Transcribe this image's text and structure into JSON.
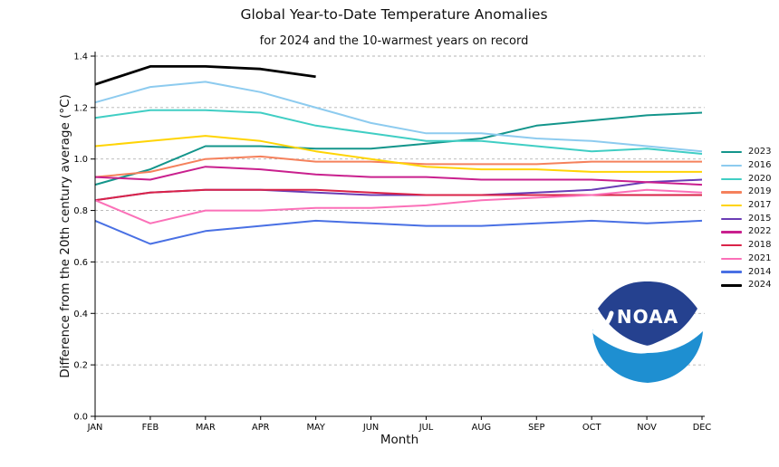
{
  "header": {
    "title": "Global Year-to-Date Temperature Anomalies",
    "subtitle": "for 2024 and the 10-warmest years on record"
  },
  "chart_data": {
    "type": "line",
    "title": "Global Year-to-Date Temperature Anomalies",
    "subtitle": "for 2024 and the 10-warmest years on record",
    "xlabel": "Month",
    "ylabel": "Difference from the 20th century average (°C)",
    "categories": [
      "JAN",
      "FEB",
      "MAR",
      "APR",
      "MAY",
      "JUN",
      "JUL",
      "AUG",
      "SEP",
      "OCT",
      "NOV",
      "DEC"
    ],
    "ylim": [
      0.0,
      1.4
    ],
    "yticks": [
      0.0,
      0.2,
      0.4,
      0.6,
      0.8,
      1.0,
      1.2,
      1.4
    ],
    "grid": "dashed horizontal gridlines at each 0.2 °C",
    "legend_position": "right",
    "series": [
      {
        "name": "2023",
        "color": "#13958B",
        "width": 2,
        "values": [
          0.9,
          0.96,
          1.05,
          1.05,
          1.04,
          1.04,
          1.06,
          1.08,
          1.13,
          1.15,
          1.17,
          1.18
        ]
      },
      {
        "name": "2016",
        "color": "#8DCBEF",
        "width": 2,
        "values": [
          1.22,
          1.28,
          1.3,
          1.26,
          1.2,
          1.14,
          1.1,
          1.1,
          1.08,
          1.07,
          1.05,
          1.03
        ]
      },
      {
        "name": "2020",
        "color": "#40CEC4",
        "width": 2,
        "values": [
          1.16,
          1.19,
          1.19,
          1.18,
          1.13,
          1.1,
          1.07,
          1.07,
          1.05,
          1.03,
          1.04,
          1.02
        ]
      },
      {
        "name": "2019",
        "color": "#F5815C",
        "width": 2,
        "values": [
          0.93,
          0.95,
          1.0,
          1.01,
          0.99,
          0.99,
          0.98,
          0.98,
          0.98,
          0.99,
          0.99,
          0.99
        ]
      },
      {
        "name": "2017",
        "color": "#FFD405",
        "width": 2,
        "values": [
          1.05,
          1.07,
          1.09,
          1.07,
          1.03,
          1.0,
          0.97,
          0.96,
          0.96,
          0.95,
          0.95,
          0.95
        ]
      },
      {
        "name": "2015",
        "color": "#6A3CB5",
        "width": 2,
        "values": [
          0.84,
          0.87,
          0.88,
          0.88,
          0.87,
          0.86,
          0.86,
          0.86,
          0.87,
          0.88,
          0.91,
          0.92
        ]
      },
      {
        "name": "2022",
        "color": "#C9208E",
        "width": 2,
        "values": [
          0.93,
          0.92,
          0.97,
          0.96,
          0.94,
          0.93,
          0.93,
          0.92,
          0.92,
          0.92,
          0.91,
          0.9
        ]
      },
      {
        "name": "2018",
        "color": "#DA2348",
        "width": 2,
        "values": [
          0.84,
          0.87,
          0.88,
          0.88,
          0.88,
          0.87,
          0.86,
          0.86,
          0.86,
          0.86,
          0.86,
          0.86
        ]
      },
      {
        "name": "2021",
        "color": "#FB70B8",
        "width": 2,
        "values": [
          0.84,
          0.75,
          0.8,
          0.8,
          0.81,
          0.81,
          0.82,
          0.84,
          0.85,
          0.86,
          0.88,
          0.87
        ]
      },
      {
        "name": "2014",
        "color": "#4970E4",
        "width": 2,
        "values": [
          0.76,
          0.67,
          0.72,
          0.74,
          0.76,
          0.75,
          0.74,
          0.74,
          0.75,
          0.76,
          0.75,
          0.76
        ]
      },
      {
        "name": "2024",
        "color": "#000000",
        "width": 2.8,
        "values": [
          1.29,
          1.36,
          1.36,
          1.35,
          1.32
        ]
      }
    ]
  },
  "logo": {
    "text": "NOAA",
    "navy": "#25418F",
    "sea_blue": "#1E8FD1"
  }
}
